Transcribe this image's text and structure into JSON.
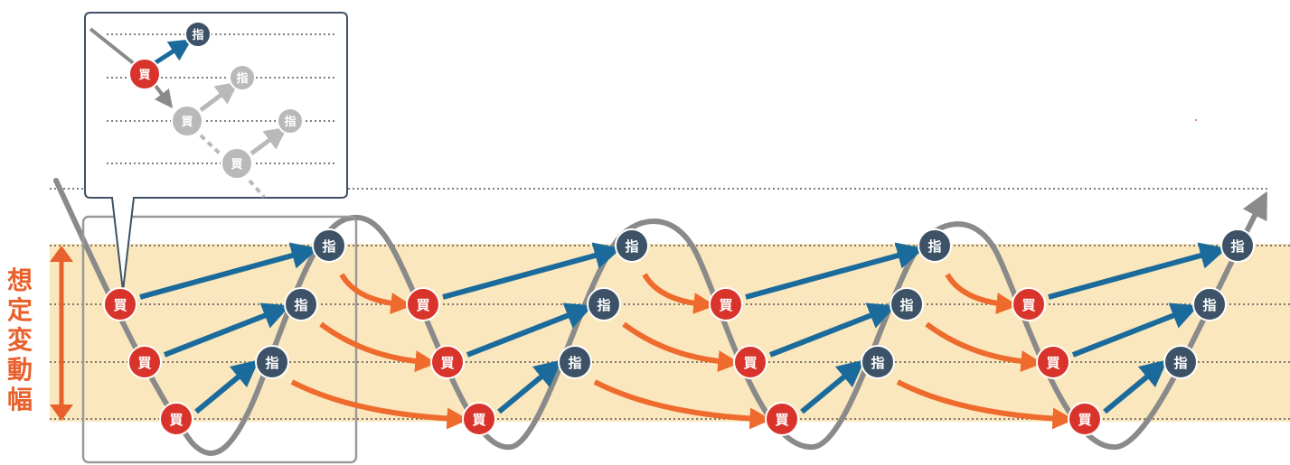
{
  "range_label": [
    "想",
    "定",
    "変",
    "動",
    "幅"
  ],
  "buy_label": "買",
  "limit_label": "指",
  "colors": {
    "band": "#fbe7bd",
    "buy": "#d9342b",
    "limit": "#3d5266",
    "entry_arrow": "#1a6b9c",
    "carry_arrow": "#ee6a2d",
    "price_line": "#8a8a8a",
    "faded": "#b9b9b9",
    "range_marker": "#e8602c"
  }
}
